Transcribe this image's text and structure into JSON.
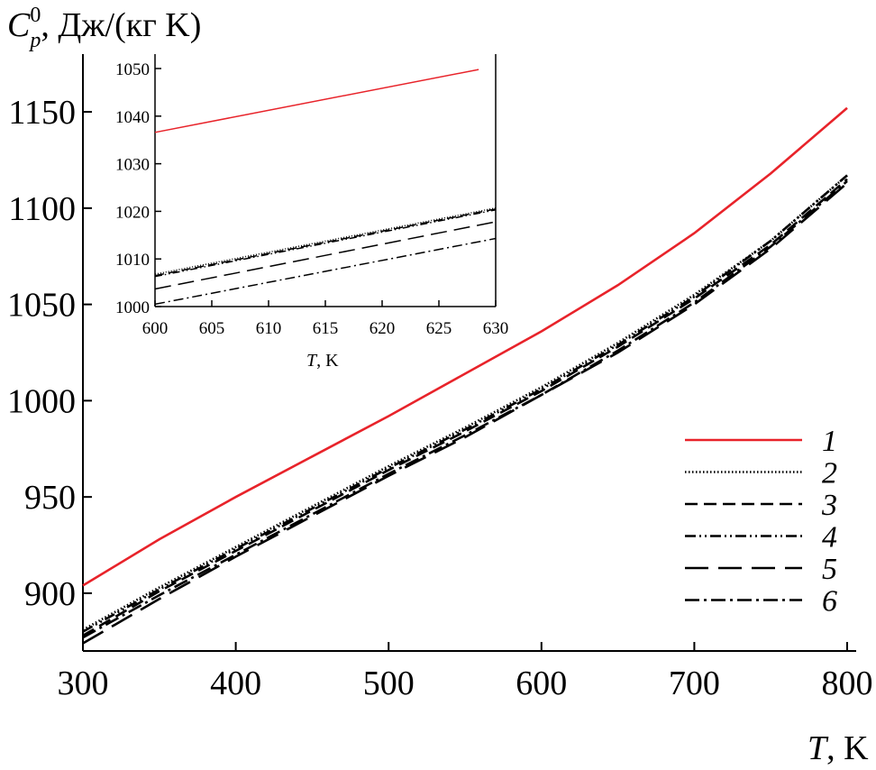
{
  "colors": {
    "series_1": "#e8232a",
    "others": "#000000"
  },
  "chart_data": [
    {
      "type": "line",
      "ylabel_main": "C",
      "ylabel_sub": "p",
      "ylabel_sup": "0",
      "ylabel_units": ", Дж/(кг K)",
      "xlabel_italic": "T",
      "xlabel_units": ", K",
      "xlim": [
        300,
        800
      ],
      "ylim": [
        870,
        1180
      ],
      "xticks": [
        300,
        400,
        500,
        600,
        700,
        800
      ],
      "yticks": [
        900,
        950,
        1000,
        1050,
        1100,
        1150
      ],
      "legend": {
        "position": "lower-right"
      },
      "series": [
        {
          "name": "1",
          "style": "solid",
          "color": "#e8232a",
          "x": [
            300,
            350,
            400,
            450,
            500,
            550,
            600,
            650,
            700,
            750,
            800
          ],
          "y": [
            904,
            928,
            950,
            971,
            992,
            1014,
            1036,
            1060,
            1087,
            1118,
            1152
          ]
        },
        {
          "name": "2",
          "style": "dotted",
          "color": "#000000",
          "x": [
            300,
            350,
            400,
            450,
            500,
            550,
            600,
            650,
            700,
            750,
            800
          ],
          "y": [
            881,
            903,
            924,
            945,
            966,
            986,
            1007,
            1030,
            1055,
            1083,
            1117
          ]
        },
        {
          "name": "3",
          "style": "dashed",
          "color": "#000000",
          "x": [
            300,
            350,
            400,
            450,
            500,
            550,
            600,
            650,
            700,
            750,
            800
          ],
          "y": [
            878,
            901,
            922,
            943,
            964,
            984,
            1005,
            1028,
            1053,
            1081,
            1115
          ]
        },
        {
          "name": "4",
          "style": "dashdotdot",
          "color": "#000000",
          "x": [
            300,
            350,
            400,
            450,
            500,
            550,
            600,
            650,
            700,
            750,
            800
          ],
          "y": [
            880,
            902,
            923,
            944,
            965,
            985,
            1006,
            1029,
            1054,
            1083,
            1117
          ]
        },
        {
          "name": "5",
          "style": "longdash",
          "color": "#000000",
          "x": [
            300,
            350,
            400,
            450,
            500,
            550,
            600,
            650,
            700,
            750,
            800
          ],
          "y": [
            874,
            897,
            919,
            940,
            961,
            981,
            1003,
            1025,
            1050,
            1079,
            1113
          ]
        },
        {
          "name": "6",
          "style": "dashdot",
          "color": "#000000",
          "x": [
            300,
            350,
            400,
            450,
            500,
            550,
            600,
            650,
            700,
            750,
            800
          ],
          "y": [
            877,
            899,
            920,
            941,
            962,
            982,
            1003,
            1026,
            1051,
            1080,
            1114
          ]
        }
      ]
    },
    {
      "type": "line",
      "xlabel_italic": "T",
      "xlabel_units": ", K",
      "xlim": [
        600,
        630
      ],
      "ylim": [
        1000,
        1050
      ],
      "xticks": [
        600,
        605,
        610,
        615,
        620,
        625,
        630
      ],
      "yticks": [
        1000,
        1010,
        1020,
        1030,
        1040,
        1050
      ],
      "series": [
        {
          "name": "1",
          "style": "solid",
          "color": "#e8232a",
          "x": [
            600,
            628.5
          ],
          "y": [
            1036.6,
            1049.8
          ]
        },
        {
          "name": "2",
          "style": "dotted",
          "color": "#000000",
          "x": [
            600,
            630
          ],
          "y": [
            1006.8,
            1020.7
          ]
        },
        {
          "name": "3",
          "style": "dashed",
          "color": "#000000",
          "x": [
            600,
            630
          ],
          "y": [
            1006.5,
            1020.5
          ]
        },
        {
          "name": "4",
          "style": "dashdotdot",
          "color": "#000000",
          "x": [
            600,
            630
          ],
          "y": [
            1006.3,
            1020.3
          ]
        },
        {
          "name": "5",
          "style": "longdash",
          "color": "#000000",
          "x": [
            600,
            630
          ],
          "y": [
            1003.7,
            1017.8
          ]
        },
        {
          "name": "6",
          "style": "dashdot",
          "color": "#000000",
          "x": [
            600,
            630
          ],
          "y": [
            1000.5,
            1014.3
          ]
        }
      ]
    }
  ]
}
